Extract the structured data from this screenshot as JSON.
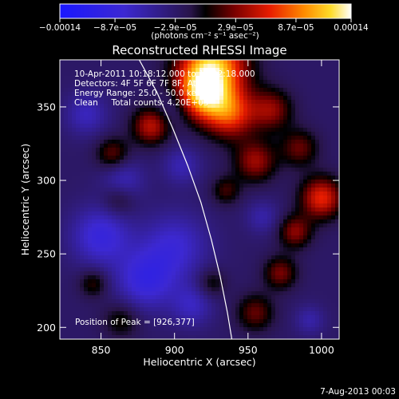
{
  "chart_data": {
    "type": "heatmap",
    "title": "Reconstructed RHESSI Image",
    "xlabel": "Heliocentric X (arcsec)",
    "ylabel": "Heliocentric Y (arcsec)",
    "xlim": [
      822,
      1012
    ],
    "ylim": [
      192,
      382
    ],
    "x_ticks": [
      850,
      900,
      950,
      1000
    ],
    "y_ticks": [
      200,
      250,
      300,
      350
    ],
    "colorbar": {
      "range": [
        -0.00014,
        0.00014
      ],
      "tick_values": [
        -0.00014,
        -8.7e-05,
        -2.9e-05,
        2.9e-05,
        8.7e-05,
        0.00014
      ],
      "tick_labels": [
        "−0.00014",
        "−8.7e−05",
        "−2.9e−05",
        "2.9e−05",
        "8.7e−05",
        "0.00014"
      ],
      "unit_label": "(photons cm⁻² s⁻¹ asec⁻²)"
    },
    "annotations": [
      "10-Apr-2011 10:18:12.000 to 10:22:18.000",
      "Detectors: 4F 5F 6F 7F 8F, Att 0",
      "Energy Range: 25.0 - 50.0 keV",
      "Clean     Total counts: 4.20E+03"
    ],
    "peak_label": "Position of Peak = [926,377]",
    "peak": [
      926,
      377
    ],
    "limb_curve": [
      [
        876,
        382
      ],
      [
        888,
        360
      ],
      [
        899,
        335
      ],
      [
        909,
        310
      ],
      [
        918,
        285
      ],
      [
        925,
        260
      ],
      [
        931,
        235
      ],
      [
        936,
        210
      ],
      [
        939,
        192
      ]
    ],
    "blobs": [
      [
        926,
        377,
        16,
        0.00014
      ],
      [
        918,
        358,
        12,
        0.00011
      ],
      [
        938,
        345,
        12,
        9e-05
      ],
      [
        884,
        337,
        9,
        7.5e-05
      ],
      [
        858,
        318,
        8,
        5e-05
      ],
      [
        966,
        348,
        10,
        6e-05
      ],
      [
        985,
        322,
        9,
        5e-05
      ],
      [
        955,
        313,
        10,
        6.5e-05
      ],
      [
        1000,
        288,
        10,
        9e-05
      ],
      [
        982,
        265,
        8,
        6e-05
      ],
      [
        972,
        237,
        8,
        5.5e-05
      ],
      [
        955,
        210,
        9,
        5e-05
      ],
      [
        935,
        293,
        7,
        4e-05
      ],
      [
        862,
        287,
        8,
        3.5e-05
      ],
      [
        845,
        230,
        7,
        4e-05
      ],
      [
        864,
        205,
        9,
        3.5e-05
      ],
      [
        925,
        230,
        7,
        3.5e-05
      ],
      [
        850,
        262,
        14,
        -6e-05
      ],
      [
        900,
        255,
        16,
        -5e-05
      ],
      [
        865,
        300,
        10,
        -4e-05
      ],
      [
        880,
        232,
        14,
        -6e-05
      ],
      [
        912,
        215,
        10,
        -4e-05
      ],
      [
        840,
        345,
        10,
        -4e-05
      ],
      [
        905,
        310,
        9,
        -3.5e-05
      ],
      [
        900,
        350,
        9,
        -3e-05
      ],
      [
        960,
        275,
        8,
        -3e-05
      ],
      [
        992,
        205,
        7,
        -3e-05
      ]
    ]
  },
  "footer": {
    "date": "7-Aug-2013 00:03"
  }
}
